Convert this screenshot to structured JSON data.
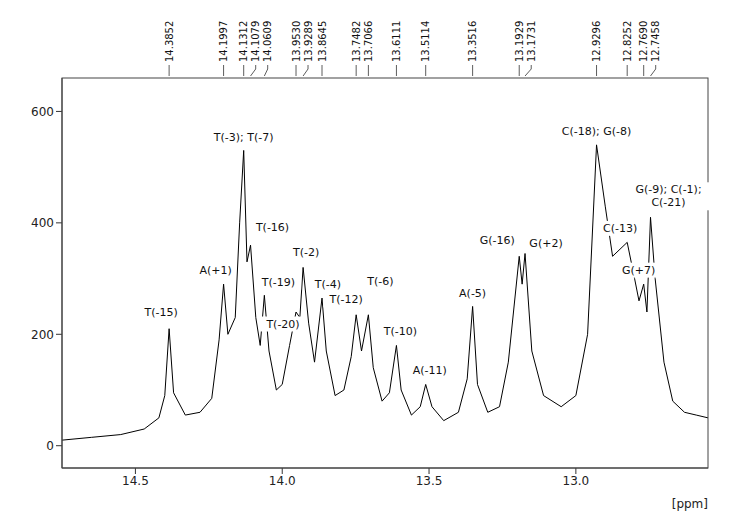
{
  "chart_data": {
    "type": "line",
    "x_label": "[ppm]",
    "color": "#000000",
    "x": [
      14.75,
      14.65,
      14.55,
      14.47,
      14.42,
      14.4,
      14.3852,
      14.37,
      14.33,
      14.28,
      14.24,
      14.215,
      14.1997,
      14.185,
      14.16,
      14.145,
      14.1312,
      14.12,
      14.1079,
      14.09,
      14.075,
      14.0609,
      14.045,
      14.02,
      14.0,
      13.975,
      13.953,
      13.94,
      13.9289,
      13.91,
      13.89,
      13.8645,
      13.85,
      13.82,
      13.79,
      13.765,
      13.7482,
      13.73,
      13.7066,
      13.69,
      13.66,
      13.635,
      13.6111,
      13.595,
      13.56,
      13.53,
      13.5114,
      13.49,
      13.45,
      13.4,
      13.37,
      13.3516,
      13.335,
      13.3,
      13.26,
      13.23,
      13.1929,
      13.183,
      13.1731,
      13.15,
      13.11,
      13.05,
      13.0,
      12.96,
      12.9296,
      12.9,
      12.875,
      12.8252,
      12.8,
      12.785,
      12.769,
      12.758,
      12.7458,
      12.73,
      12.7,
      12.67,
      12.63,
      12.59,
      12.55
    ],
    "values": [
      10,
      15,
      20,
      30,
      50,
      90,
      210,
      95,
      55,
      60,
      85,
      190,
      290,
      200,
      230,
      400,
      530,
      330,
      360,
      230,
      180,
      270,
      170,
      100,
      110,
      180,
      240,
      230,
      320,
      220,
      150,
      265,
      170,
      90,
      100,
      160,
      235,
      170,
      235,
      140,
      80,
      95,
      180,
      100,
      55,
      70,
      110,
      70,
      45,
      60,
      120,
      250,
      110,
      60,
      70,
      150,
      340,
      290,
      345,
      170,
      90,
      70,
      90,
      200,
      540,
      430,
      340,
      365,
      300,
      260,
      290,
      240,
      410,
      300,
      150,
      80,
      60,
      55,
      50
    ],
    "xlim": [
      14.75,
      12.55
    ],
    "xticks": [
      14.5,
      {
        "value": 14,
        "label": "14.0"
      },
      13.5,
      {
        "value": 13,
        "label": "13.0"
      }
    ],
    "ylim": [
      -40,
      660
    ],
    "yticks": [
      0,
      200,
      400,
      600
    ],
    "annotations": [
      {
        "x": 14.3852,
        "y": 210,
        "label": "14.3852",
        "text": "T(-15)"
      },
      {
        "x": 14.1997,
        "y": 290,
        "label": "14.1997",
        "text": "A(+1)"
      },
      {
        "x": 14.1312,
        "y": 530,
        "label": "14.1312",
        "text": "T(-3); T(-7)"
      },
      {
        "x": 14.1079,
        "y": 360,
        "label": "14.1079",
        "text": "T(-16)"
      },
      {
        "x": 14.0609,
        "y": 270,
        "label": "14.0609",
        "text": "T(-19)"
      },
      {
        "x": 13.953,
        "y": 240,
        "label": "13.9530",
        "text": "T(-20)"
      },
      {
        "x": 13.9289,
        "y": 320,
        "label": "13.9289",
        "text": "T(-2)"
      },
      {
        "x": 13.8645,
        "y": 265,
        "label": "13.8645",
        "text": "T(-4)"
      },
      {
        "x": 13.7482,
        "y": 235,
        "label": "13.7482",
        "text": "T(-12)"
      },
      {
        "x": 13.7066,
        "y": 235,
        "label": "13.7066",
        "text": "T(-6)"
      },
      {
        "x": 13.6111,
        "y": 180,
        "label": "13.6111",
        "text": "T(-10)"
      },
      {
        "x": 13.5114,
        "y": 110,
        "label": "13.5114",
        "text": "A(-11)"
      },
      {
        "x": 13.3516,
        "y": 250,
        "label": "13.3516",
        "text": "A(-5)"
      },
      {
        "x": 13.1929,
        "y": 340,
        "label": "13.1929",
        "text": "G(-16)"
      },
      {
        "x": 13.1731,
        "y": 345,
        "label": "13.1731",
        "text": "G(+2)"
      },
      {
        "x": 12.9296,
        "y": 540,
        "label": "12.9296",
        "text": "C(-18); G(-8)"
      },
      {
        "x": 12.8252,
        "y": 365,
        "label": "12.8252",
        "text": "C(-13)"
      },
      {
        "x": 12.769,
        "y": 290,
        "label": "12.7690",
        "text": "G(+7)"
      },
      {
        "x": 12.7458,
        "y": 410,
        "label": "12.7458",
        "text": "G(-9); C(-1); C(-21)"
      }
    ]
  }
}
